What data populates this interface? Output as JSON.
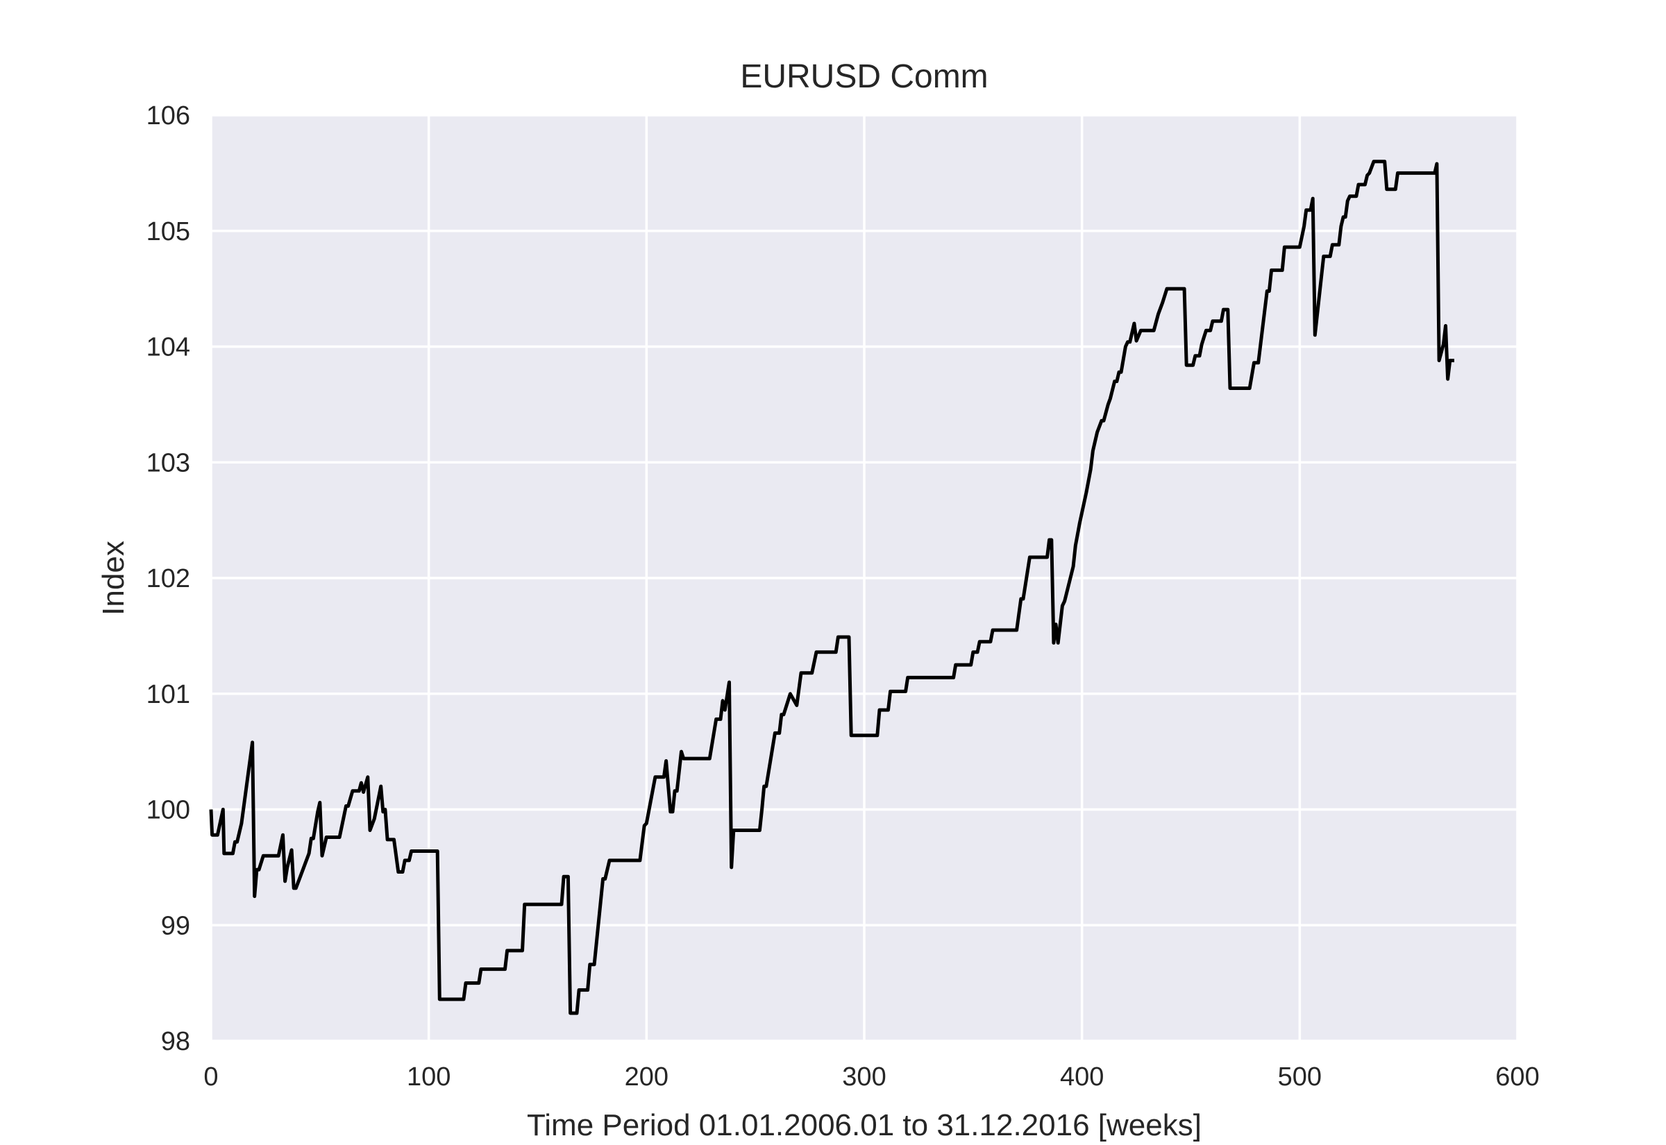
{
  "chart_data": {
    "type": "line",
    "title": "EURUSD Comm",
    "xlabel": "Time Period 01.01.2006.01 to 31.12.2016 [weeks]",
    "ylabel": "Index",
    "xlim": [
      0,
      600
    ],
    "ylim": [
      98,
      106
    ],
    "xticks": [
      0,
      100,
      200,
      300,
      400,
      500,
      600
    ],
    "yticks": [
      98,
      99,
      100,
      101,
      102,
      103,
      104,
      105,
      106
    ],
    "grid": true,
    "background_color": "#eaeaf2",
    "grid_color": "#ffffff",
    "line_color": "#000000",
    "series": [
      {
        "values": [
          [
            0,
            100.0
          ],
          [
            0.5,
            99.78
          ],
          [
            3,
            99.78
          ],
          [
            5.5,
            100.0
          ],
          [
            6,
            99.62
          ],
          [
            10,
            99.62
          ],
          [
            11,
            99.72
          ],
          [
            12,
            99.72
          ],
          [
            14,
            99.88
          ],
          [
            19,
            100.58
          ],
          [
            20,
            99.25
          ],
          [
            21,
            99.48
          ],
          [
            22,
            99.48
          ],
          [
            24,
            99.6
          ],
          [
            31,
            99.6
          ],
          [
            33,
            99.78
          ],
          [
            34,
            99.38
          ],
          [
            35,
            99.5
          ],
          [
            37,
            99.65
          ],
          [
            38,
            99.32
          ],
          [
            39,
            99.32
          ],
          [
            41,
            99.42
          ],
          [
            45,
            99.62
          ],
          [
            46,
            99.75
          ],
          [
            47,
            99.75
          ],
          [
            49,
            99.98
          ],
          [
            50,
            100.06
          ],
          [
            51,
            99.6
          ],
          [
            52,
            99.68
          ],
          [
            53,
            99.76
          ],
          [
            59,
            99.76
          ],
          [
            62,
            100.03
          ],
          [
            63,
            100.03
          ],
          [
            65,
            100.16
          ],
          [
            68,
            100.16
          ],
          [
            69,
            100.23
          ],
          [
            70,
            100.15
          ],
          [
            72,
            100.28
          ],
          [
            73,
            99.82
          ],
          [
            75,
            99.92
          ],
          [
            78,
            100.2
          ],
          [
            79,
            99.98
          ],
          [
            80,
            100.0
          ],
          [
            81,
            99.74
          ],
          [
            84,
            99.74
          ],
          [
            86,
            99.46
          ],
          [
            88,
            99.46
          ],
          [
            89,
            99.56
          ],
          [
            91,
            99.56
          ],
          [
            92,
            99.64
          ],
          [
            104,
            99.64
          ],
          [
            105,
            98.36
          ],
          [
            116,
            98.36
          ],
          [
            117,
            98.5
          ],
          [
            123,
            98.5
          ],
          [
            124,
            98.62
          ],
          [
            135,
            98.62
          ],
          [
            136,
            98.78
          ],
          [
            143,
            98.78
          ],
          [
            144,
            99.18
          ],
          [
            161,
            99.18
          ],
          [
            162,
            99.42
          ],
          [
            164,
            99.42
          ],
          [
            165,
            98.24
          ],
          [
            168,
            98.24
          ],
          [
            169,
            98.44
          ],
          [
            173,
            98.44
          ],
          [
            174,
            98.66
          ],
          [
            176,
            98.66
          ],
          [
            180,
            99.4
          ],
          [
            181,
            99.4
          ],
          [
            183,
            99.56
          ],
          [
            197,
            99.56
          ],
          [
            199,
            99.86
          ],
          [
            200,
            99.88
          ],
          [
            204,
            100.28
          ],
          [
            208,
            100.28
          ],
          [
            209,
            100.42
          ],
          [
            211,
            99.98
          ],
          [
            212,
            99.98
          ],
          [
            213,
            100.16
          ],
          [
            214,
            100.16
          ],
          [
            216,
            100.5
          ],
          [
            217,
            100.44
          ],
          [
            229,
            100.44
          ],
          [
            232,
            100.78
          ],
          [
            234,
            100.78
          ],
          [
            235,
            100.94
          ],
          [
            236,
            100.86
          ],
          [
            238,
            101.1
          ],
          [
            239,
            99.5
          ],
          [
            240,
            99.82
          ],
          [
            252,
            99.82
          ],
          [
            253,
            100.0
          ],
          [
            254,
            100.2
          ],
          [
            255,
            100.2
          ],
          [
            259,
            100.66
          ],
          [
            261,
            100.66
          ],
          [
            262,
            100.82
          ],
          [
            263,
            100.82
          ],
          [
            266,
            101.0
          ],
          [
            269,
            100.9
          ],
          [
            271,
            101.18
          ],
          [
            276,
            101.18
          ],
          [
            278,
            101.36
          ],
          [
            287,
            101.36
          ],
          [
            288,
            101.49
          ],
          [
            293,
            101.49
          ],
          [
            294,
            100.64
          ],
          [
            306,
            100.64
          ],
          [
            307,
            100.86
          ],
          [
            311,
            100.86
          ],
          [
            312,
            101.02
          ],
          [
            319,
            101.02
          ],
          [
            320,
            101.14
          ],
          [
            341,
            101.14
          ],
          [
            342,
            101.25
          ],
          [
            349,
            101.25
          ],
          [
            350,
            101.36
          ],
          [
            352,
            101.36
          ],
          [
            353,
            101.45
          ],
          [
            358,
            101.45
          ],
          [
            359,
            101.55
          ],
          [
            370,
            101.55
          ],
          [
            372,
            101.82
          ],
          [
            373,
            101.82
          ],
          [
            376,
            102.18
          ],
          [
            384,
            102.18
          ],
          [
            385,
            102.33
          ],
          [
            386,
            102.33
          ],
          [
            387,
            101.44
          ],
          [
            388,
            101.6
          ],
          [
            389,
            101.44
          ],
          [
            391,
            101.76
          ],
          [
            392,
            101.8
          ],
          [
            396,
            102.1
          ],
          [
            397,
            102.28
          ],
          [
            399,
            102.48
          ],
          [
            402,
            102.74
          ],
          [
            404,
            102.94
          ],
          [
            405,
            103.1
          ],
          [
            407,
            103.26
          ],
          [
            409,
            103.36
          ],
          [
            410,
            103.36
          ],
          [
            412,
            103.5
          ],
          [
            413,
            103.55
          ],
          [
            415,
            103.7
          ],
          [
            416,
            103.7
          ],
          [
            417,
            103.78
          ],
          [
            418,
            103.78
          ],
          [
            420,
            104.0
          ],
          [
            421,
            104.04
          ],
          [
            422,
            104.04
          ],
          [
            424,
            104.2
          ],
          [
            425,
            104.05
          ],
          [
            427,
            104.14
          ],
          [
            433,
            104.14
          ],
          [
            435,
            104.28
          ],
          [
            437,
            104.38
          ],
          [
            439,
            104.5
          ],
          [
            447,
            104.5
          ],
          [
            448,
            103.84
          ],
          [
            451,
            103.84
          ],
          [
            452,
            103.92
          ],
          [
            454,
            103.92
          ],
          [
            455,
            104.02
          ],
          [
            456,
            104.08
          ],
          [
            457,
            104.14
          ],
          [
            459,
            104.14
          ],
          [
            460,
            104.22
          ],
          [
            464,
            104.22
          ],
          [
            465,
            104.32
          ],
          [
            467,
            104.32
          ],
          [
            468,
            103.64
          ],
          [
            477,
            103.64
          ],
          [
            479,
            103.86
          ],
          [
            481,
            103.86
          ],
          [
            485,
            104.48
          ],
          [
            486,
            104.48
          ],
          [
            487,
            104.66
          ],
          [
            492,
            104.66
          ],
          [
            493,
            104.86
          ],
          [
            500,
            104.86
          ],
          [
            502,
            105.04
          ],
          [
            503,
            105.18
          ],
          [
            505,
            105.18
          ],
          [
            506,
            105.28
          ],
          [
            507,
            104.1
          ],
          [
            511,
            104.78
          ],
          [
            514,
            104.78
          ],
          [
            515,
            104.88
          ],
          [
            518,
            104.88
          ],
          [
            519,
            105.04
          ],
          [
            520,
            105.12
          ],
          [
            521,
            105.12
          ],
          [
            522,
            105.26
          ],
          [
            523,
            105.3
          ],
          [
            526,
            105.3
          ],
          [
            527,
            105.4
          ],
          [
            530,
            105.4
          ],
          [
            531,
            105.48
          ],
          [
            532,
            105.5
          ],
          [
            534,
            105.6
          ],
          [
            539,
            105.6
          ],
          [
            540,
            105.36
          ],
          [
            544,
            105.36
          ],
          [
            545,
            105.5
          ],
          [
            562,
            105.5
          ],
          [
            563,
            105.58
          ],
          [
            564,
            103.88
          ],
          [
            566,
            104.02
          ],
          [
            567,
            104.18
          ],
          [
            568,
            103.72
          ],
          [
            569,
            103.88
          ],
          [
            571,
            103.88
          ]
        ]
      }
    ]
  }
}
